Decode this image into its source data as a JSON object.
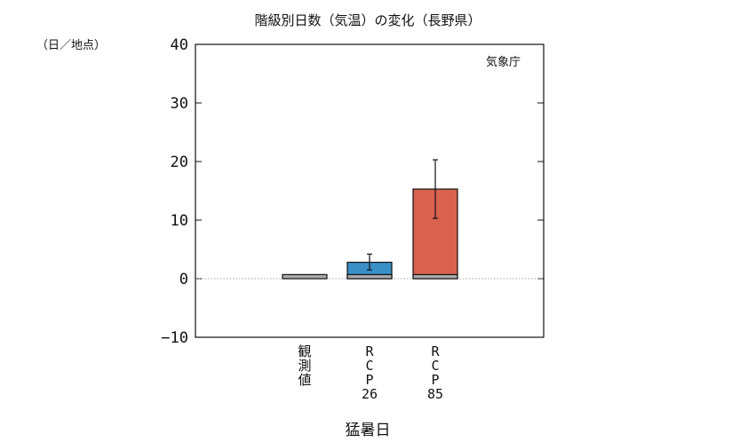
{
  "chart_data": {
    "type": "bar",
    "title": "階級別日数（気温）の変化（長野県）",
    "unit_label": "（日／地点）",
    "source": "気象庁",
    "xlabel": "猛暑日",
    "ylim": [
      -10,
      40
    ],
    "yticks": [
      -10,
      0,
      10,
      20,
      30,
      40
    ],
    "baseline_dotted": true,
    "categories": [
      {
        "label": "観測値",
        "label_lines": [
          "観",
          "測",
          "値"
        ]
      },
      {
        "label": "RCP26",
        "label_lines": [
          "R",
          "C",
          "P",
          "26"
        ]
      },
      {
        "label": "RCP85",
        "label_lines": [
          "R",
          "C",
          "P",
          "85"
        ]
      }
    ],
    "series": [
      {
        "name": "",
        "values": [
          0.7,
          0.7,
          0.7
        ],
        "color": "#aaaaaa"
      },
      {
        "name": "",
        "values": [
          null,
          2.8,
          15.3
        ],
        "color_by_category": [
          "",
          "#3a8fc7",
          "#d9624f"
        ],
        "error_low": [
          null,
          1.5,
          10.3
        ],
        "error_high": [
          null,
          4.2,
          20.3
        ]
      }
    ]
  },
  "colors": {
    "axis": "#111111",
    "observed": "#aaaaaa",
    "rcp26": "#3a8fc7",
    "rcp85": "#d9624f",
    "baseline": "#888888"
  }
}
